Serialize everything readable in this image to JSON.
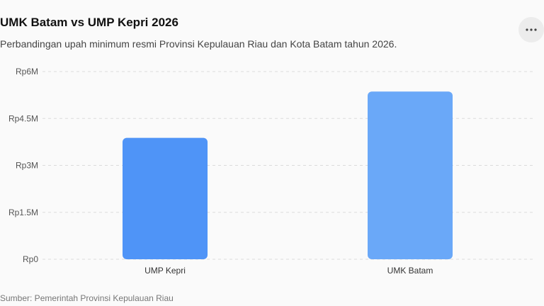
{
  "header": {
    "title": "UMK Batam vs UMP Kepri 2026",
    "subtitle": "Perbandingan upah minimum resmi Provinsi Kepulauan Riau dan Kota Batam tahun 2026.",
    "more_icon": "more-horizontal-icon"
  },
  "footer": {
    "source": "Sumber: Pemerintah Provinsi Kepulauan Riau"
  },
  "chart_data": {
    "type": "bar",
    "categories": [
      "UMP Kepri",
      "UMK Batam"
    ],
    "values": [
      3880000,
      5360000
    ],
    "colors": [
      "#4f94f7",
      "#6aa8f8"
    ],
    "title": "UMK Batam vs UMP Kepri 2026",
    "xlabel": "",
    "ylabel": "",
    "ylim": [
      0,
      6000000
    ],
    "yticks": [
      0,
      1500000,
      3000000,
      4500000,
      6000000
    ],
    "ytick_labels": [
      "Rp0",
      "Rp1.5M",
      "Rp3M",
      "Rp4.5M",
      "Rp6M"
    ],
    "grid": true,
    "legend": "none"
  }
}
